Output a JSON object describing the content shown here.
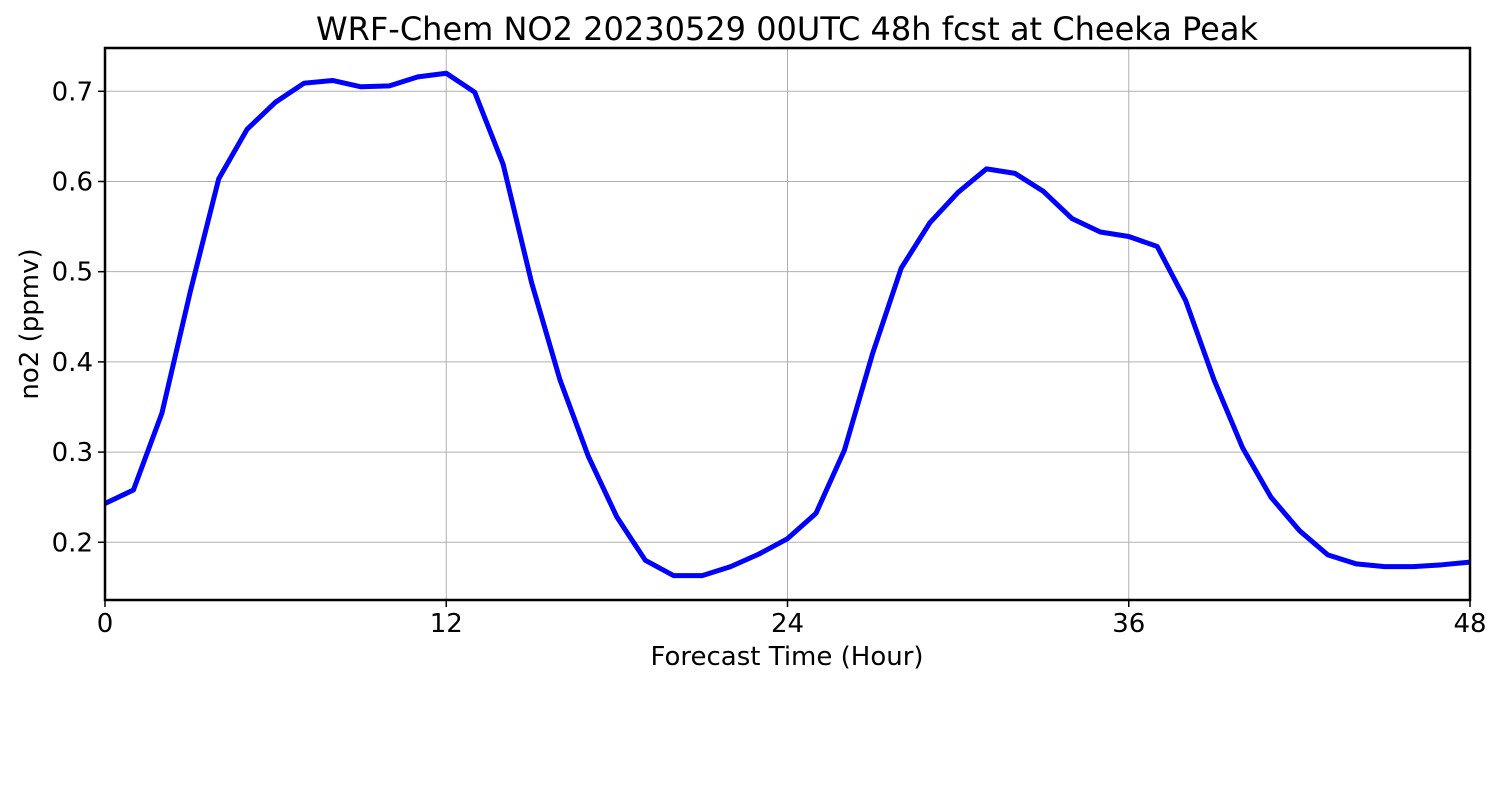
{
  "chart_data": {
    "type": "line",
    "title": "WRF-Chem NO2  20230529 00UTC 48h fcst at Cheeka Peak",
    "xlabel": "Forecast Time (Hour)",
    "ylabel": "no2  (ppmv)",
    "xlim": [
      0,
      48
    ],
    "ylim": [
      0.136,
      0.748
    ],
    "xticks": [
      0,
      12,
      24,
      36,
      48
    ],
    "xtick_labels": [
      "0",
      "12",
      "24",
      "36",
      "48"
    ],
    "yticks": [
      0.2,
      0.3,
      0.4,
      0.5,
      0.6,
      0.7
    ],
    "ytick_labels": [
      "0.2",
      "0.3",
      "0.4",
      "0.5",
      "0.6",
      "0.7"
    ],
    "grid": true,
    "legend": false,
    "line_color": "#0000ff",
    "grid_color": "#b0b0b0",
    "series": [
      {
        "x": [
          0,
          1,
          2,
          3,
          4,
          5,
          6,
          7,
          8,
          9,
          10,
          11,
          12,
          13,
          14,
          15,
          16,
          17,
          18,
          19,
          20,
          21,
          22,
          23,
          24,
          25,
          26,
          27,
          28,
          29,
          30,
          31,
          32,
          33,
          34,
          35,
          36,
          37,
          38,
          39,
          40,
          41,
          42,
          43,
          44,
          45,
          46,
          47,
          48
        ],
        "values": [
          0.243,
          0.258,
          0.343,
          0.478,
          0.603,
          0.658,
          0.688,
          0.709,
          0.712,
          0.705,
          0.706,
          0.716,
          0.72,
          0.699,
          0.619,
          0.488,
          0.38,
          0.295,
          0.228,
          0.18,
          0.163,
          0.163,
          0.173,
          0.187,
          0.204,
          0.232,
          0.302,
          0.41,
          0.504,
          0.554,
          0.588,
          0.614,
          0.609,
          0.589,
          0.559,
          0.544,
          0.539,
          0.528,
          0.468,
          0.38,
          0.305,
          0.25,
          0.213,
          0.186,
          0.176,
          0.173,
          0.173,
          0.175,
          0.178
        ]
      }
    ]
  }
}
